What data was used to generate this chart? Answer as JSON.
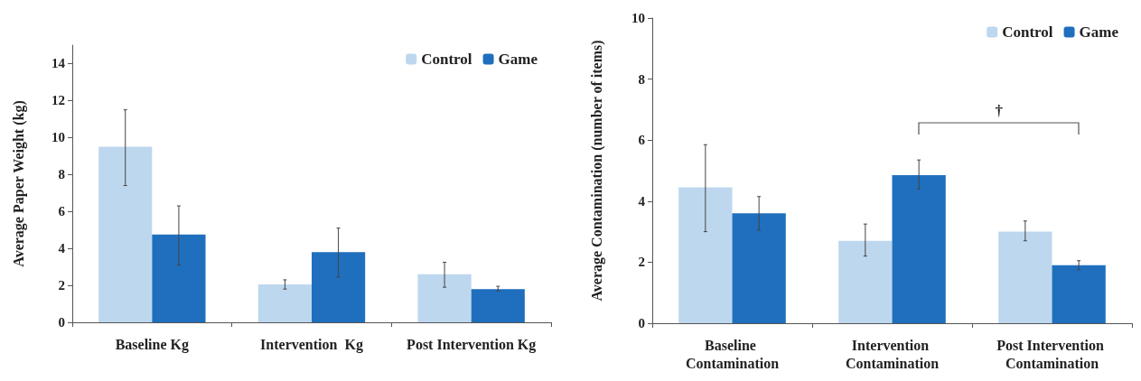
{
  "chart_data": [
    {
      "type": "bar",
      "ylabel": "Average Paper Weight (kg)",
      "categories": [
        "Baseline Kg",
        "Intervention  Kg",
        "Post Intervention Kg"
      ],
      "series": [
        {
          "name": "Control",
          "color": "#bdd7ee",
          "values": [
            9.5,
            2.05,
            2.6
          ],
          "errors": [
            [
              7.4,
              11.5
            ],
            [
              1.8,
              2.3
            ],
            [
              1.9,
              3.25
            ]
          ]
        },
        {
          "name": "Game",
          "color": "#1f6fbe",
          "values": [
            4.75,
            3.8,
            1.8
          ],
          "errors": [
            [
              3.1,
              6.3
            ],
            [
              2.45,
              5.1
            ],
            [
              1.7,
              1.95
            ]
          ]
        }
      ],
      "ylim": [
        0,
        15
      ],
      "yticks": [
        0,
        2,
        4,
        6,
        8,
        10,
        12,
        14
      ],
      "grid": false,
      "legend": "top right"
    },
    {
      "type": "bar",
      "ylabel": "Average Contamination (number of items)",
      "categories": [
        "Baseline Contamination",
        "Intervention Contamination",
        "Post Intervention Contamination"
      ],
      "series": [
        {
          "name": "Control",
          "color": "#bdd7ee",
          "values": [
            4.45,
            2.7,
            3.0
          ],
          "errors": [
            [
              3.0,
              5.85
            ],
            [
              2.2,
              3.25
            ],
            [
              2.7,
              3.35
            ]
          ]
        },
        {
          "name": "Game",
          "color": "#1f6fbe",
          "values": [
            3.6,
            4.85,
            1.9
          ],
          "errors": [
            [
              3.05,
              4.15
            ],
            [
              4.4,
              5.35
            ],
            [
              1.75,
              2.05
            ]
          ]
        }
      ],
      "ylim": [
        0,
        10
      ],
      "yticks": [
        0,
        2,
        4,
        6,
        8,
        10
      ],
      "grid": false,
      "legend": "top right",
      "annotations": [
        "†"
      ]
    }
  ]
}
